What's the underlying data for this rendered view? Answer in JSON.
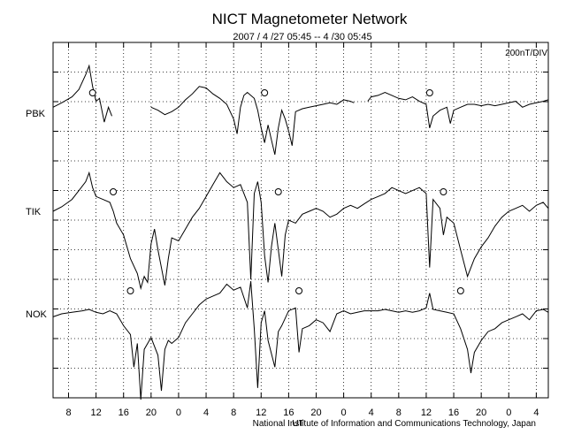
{
  "chart_data": {
    "type": "line",
    "title": "NICT Magnetometer Network",
    "subtitle": "2007 / 4 /27   05:45 --  4 /30   05:45",
    "scale_label": "200nT/DIV",
    "footer": "National Institute of Information and Communications Technology, Japan",
    "utc_marker": "UT",
    "x_ticks": [
      "8",
      "12",
      "16",
      "20",
      "0",
      "4",
      "8",
      "12",
      "16",
      "20",
      "0",
      "4",
      "8",
      "12",
      "16",
      "20",
      "0",
      "4"
    ],
    "x_range_hours": [
      5.75,
      77.75
    ],
    "y_divisions": 12,
    "grid": true,
    "stations": [
      {
        "name": "PBK",
        "circle_hours": [
          11.5,
          36.5,
          60.5
        ],
        "trace": [
          [
            5.75,
            0.2
          ],
          [
            7,
            0.35
          ],
          [
            8.5,
            0.55
          ],
          [
            9.5,
            0.8
          ],
          [
            10.5,
            1.3
          ],
          [
            11,
            1.6
          ],
          [
            11.5,
            0.9
          ],
          [
            12,
            0.4
          ],
          [
            12.5,
            0.5
          ],
          [
            13.2,
            -0.3
          ],
          [
            13.8,
            0.2
          ],
          [
            14.3,
            -0.1
          ],
          [
            14.6,
            null
          ],
          [
            19.5,
            null
          ],
          [
            20,
            0.2
          ],
          [
            21,
            0.1
          ],
          [
            22,
            -0.05
          ],
          [
            23,
            0.05
          ],
          [
            24,
            0.2
          ],
          [
            25,
            0.45
          ],
          [
            26,
            0.65
          ],
          [
            27,
            0.9
          ],
          [
            28,
            0.85
          ],
          [
            29,
            0.65
          ],
          [
            30,
            0.5
          ],
          [
            31,
            0.3
          ],
          [
            32,
            -0.2
          ],
          [
            32.5,
            -0.7
          ],
          [
            33,
            0.2
          ],
          [
            33.5,
            0.6
          ],
          [
            34,
            0.7
          ],
          [
            35,
            0.5
          ],
          [
            35.5,
            0.1
          ],
          [
            36,
            -0.5
          ],
          [
            36.5,
            -1.0
          ],
          [
            37,
            -0.4
          ],
          [
            37.5,
            -0.9
          ],
          [
            38,
            -1.4
          ],
          [
            38.5,
            -0.5
          ],
          [
            39,
            0.1
          ],
          [
            39.5,
            -0.2
          ],
          [
            40,
            -0.6
          ],
          [
            40.5,
            -1.1
          ],
          [
            41,
            0.05
          ],
          [
            42,
            0.15
          ],
          [
            43,
            0.2
          ],
          [
            44,
            0.25
          ],
          [
            45,
            0.3
          ],
          [
            46,
            0.35
          ],
          [
            47,
            0.3
          ],
          [
            48,
            0.45
          ],
          [
            49,
            0.4
          ],
          [
            49.5,
            0.35
          ],
          [
            49.8,
            null
          ],
          [
            51,
            null
          ],
          [
            51.5,
            0.4
          ],
          [
            52,
            0.55
          ],
          [
            53,
            0.6
          ],
          [
            54,
            0.7
          ],
          [
            55,
            0.6
          ],
          [
            56,
            0.5
          ],
          [
            57,
            0.45
          ],
          [
            58,
            0.55
          ],
          [
            59,
            0.4
          ],
          [
            60,
            0.3
          ],
          [
            60.5,
            -0.5
          ],
          [
            61,
            -0.1
          ],
          [
            62,
            0.1
          ],
          [
            63,
            0.2
          ],
          [
            63.5,
            -0.35
          ],
          [
            64,
            0.1
          ],
          [
            65,
            0.2
          ],
          [
            66,
            0.3
          ],
          [
            67,
            0.3
          ],
          [
            68,
            0.25
          ],
          [
            69,
            0.3
          ],
          [
            70,
            0.25
          ],
          [
            71,
            0.3
          ],
          [
            72,
            0.35
          ],
          [
            73,
            0.4
          ],
          [
            74,
            0.2
          ],
          [
            75,
            0.3
          ],
          [
            76,
            0.35
          ],
          [
            77,
            0.4
          ],
          [
            77.75,
            0.45
          ]
        ]
      },
      {
        "name": "TIK",
        "circle_hours": [
          14.5,
          38.5,
          62.5
        ],
        "trace": [
          [
            5.75,
            0.0
          ],
          [
            7,
            0.15
          ],
          [
            8.5,
            0.4
          ],
          [
            9.5,
            0.7
          ],
          [
            10.5,
            1.0
          ],
          [
            11,
            1.3
          ],
          [
            11.5,
            0.8
          ],
          [
            12,
            0.5
          ],
          [
            13,
            0.4
          ],
          [
            14,
            0.3
          ],
          [
            14.5,
            0.0
          ],
          [
            15,
            -0.4
          ],
          [
            16,
            -0.8
          ],
          [
            17,
            -1.6
          ],
          [
            18,
            -2.1
          ],
          [
            18.5,
            -2.6
          ],
          [
            19,
            -2.2
          ],
          [
            19.5,
            -2.4
          ],
          [
            20,
            -1.1
          ],
          [
            20.5,
            -0.6
          ],
          [
            21,
            -1.3
          ],
          [
            22,
            -2.5
          ],
          [
            22.5,
            -1.6
          ],
          [
            23,
            -0.9
          ],
          [
            24,
            -1.0
          ],
          [
            25,
            -0.6
          ],
          [
            26,
            -0.2
          ],
          [
            27,
            0.1
          ],
          [
            28,
            0.5
          ],
          [
            29,
            0.9
          ],
          [
            30,
            1.3
          ],
          [
            31,
            1.0
          ],
          [
            32,
            0.8
          ],
          [
            33,
            0.9
          ],
          [
            34,
            0.3
          ],
          [
            34.5,
            -2.3
          ],
          [
            35,
            0.6
          ],
          [
            35.5,
            1.0
          ],
          [
            36,
            0.3
          ],
          [
            36.5,
            -1.5
          ],
          [
            37,
            -2.4
          ],
          [
            37.5,
            -1.2
          ],
          [
            38,
            -0.4
          ],
          [
            38.5,
            -1.3
          ],
          [
            39,
            -2.2
          ],
          [
            39.5,
            -0.8
          ],
          [
            40,
            -0.3
          ],
          [
            41,
            -0.4
          ],
          [
            42,
            -0.1
          ],
          [
            43,
            0.0
          ],
          [
            44,
            0.1
          ],
          [
            45,
            0.0
          ],
          [
            46,
            -0.2
          ],
          [
            47,
            -0.1
          ],
          [
            48,
            0.1
          ],
          [
            49,
            0.2
          ],
          [
            50,
            0.1
          ],
          [
            51,
            0.25
          ],
          [
            52,
            0.4
          ],
          [
            53,
            0.5
          ],
          [
            54,
            0.6
          ],
          [
            55,
            0.8
          ],
          [
            56,
            0.7
          ],
          [
            57,
            0.6
          ],
          [
            58,
            0.7
          ],
          [
            59,
            0.8
          ],
          [
            60,
            0.6
          ],
          [
            60.5,
            -1.9
          ],
          [
            61,
            0.4
          ],
          [
            62,
            0.1
          ],
          [
            62.5,
            -0.8
          ],
          [
            63,
            -0.2
          ],
          [
            64,
            -0.4
          ],
          [
            65,
            -1.3
          ],
          [
            66,
            -2.2
          ],
          [
            67,
            -1.6
          ],
          [
            68,
            -1.2
          ],
          [
            69,
            -0.9
          ],
          [
            70,
            -0.5
          ],
          [
            71,
            -0.2
          ],
          [
            72,
            0.0
          ],
          [
            73,
            0.1
          ],
          [
            74,
            0.2
          ],
          [
            75,
            0.0
          ],
          [
            76,
            0.2
          ],
          [
            77,
            0.3
          ],
          [
            77.75,
            0.1
          ]
        ]
      },
      {
        "name": "NOK",
        "circle_hours": [
          17.0,
          41.5,
          65.0
        ],
        "trace": [
          [
            5.75,
            -0.1
          ],
          [
            7,
            0.0
          ],
          [
            8.5,
            0.05
          ],
          [
            10,
            0.1
          ],
          [
            11,
            0.15
          ],
          [
            12,
            0.05
          ],
          [
            13,
            0.0
          ],
          [
            14,
            0.1
          ],
          [
            15,
            0.0
          ],
          [
            16,
            -0.4
          ],
          [
            17,
            -0.7
          ],
          [
            17.5,
            -1.8
          ],
          [
            18,
            -1.0
          ],
          [
            18.5,
            -2.9
          ],
          [
            19,
            -1.2
          ],
          [
            20,
            -0.8
          ],
          [
            21,
            -1.4
          ],
          [
            21.5,
            -2.6
          ],
          [
            22,
            -1.2
          ],
          [
            22.5,
            -0.9
          ],
          [
            23,
            -1.0
          ],
          [
            24,
            -0.8
          ],
          [
            25,
            -0.3
          ],
          [
            26,
            0.0
          ],
          [
            27,
            0.3
          ],
          [
            28,
            0.5
          ],
          [
            29,
            0.6
          ],
          [
            30,
            0.7
          ],
          [
            31,
            1.0
          ],
          [
            32,
            0.8
          ],
          [
            33,
            0.9
          ],
          [
            34,
            0.2
          ],
          [
            34.5,
            1.1
          ],
          [
            35,
            -0.5
          ],
          [
            35.5,
            -2.5
          ],
          [
            36,
            -0.3
          ],
          [
            36.5,
            0.1
          ],
          [
            37,
            -0.9
          ],
          [
            38,
            -1.8
          ],
          [
            38.5,
            -0.6
          ],
          [
            39,
            -0.4
          ],
          [
            40,
            0.1
          ],
          [
            41,
            0.2
          ],
          [
            41.5,
            -1.3
          ],
          [
            42,
            -0.5
          ],
          [
            43,
            -0.4
          ],
          [
            44,
            -0.2
          ],
          [
            45,
            -0.3
          ],
          [
            46,
            -0.6
          ],
          [
            47,
            0.0
          ],
          [
            48,
            0.1
          ],
          [
            49,
            0.0
          ],
          [
            50,
            0.05
          ],
          [
            51,
            0.1
          ],
          [
            52,
            0.1
          ],
          [
            53,
            0.1
          ],
          [
            54,
            0.15
          ],
          [
            55,
            0.1
          ],
          [
            56,
            0.05
          ],
          [
            57,
            0.1
          ],
          [
            58,
            0.05
          ],
          [
            59,
            0.1
          ],
          [
            60,
            0.2
          ],
          [
            60.5,
            0.7
          ],
          [
            61,
            0.15
          ],
          [
            62,
            0.1
          ],
          [
            63,
            0.05
          ],
          [
            64,
            0.0
          ],
          [
            65,
            -0.5
          ],
          [
            66,
            -1.2
          ],
          [
            66.5,
            -2.0
          ],
          [
            67,
            -1.3
          ],
          [
            68,
            -0.9
          ],
          [
            69,
            -0.6
          ],
          [
            70,
            -0.5
          ],
          [
            71,
            -0.3
          ],
          [
            72,
            -0.2
          ],
          [
            73,
            -0.1
          ],
          [
            74,
            0.0
          ],
          [
            75,
            -0.2
          ],
          [
            76,
            0.1
          ],
          [
            77,
            0.15
          ],
          [
            77.75,
            0.05
          ]
        ]
      }
    ]
  }
}
